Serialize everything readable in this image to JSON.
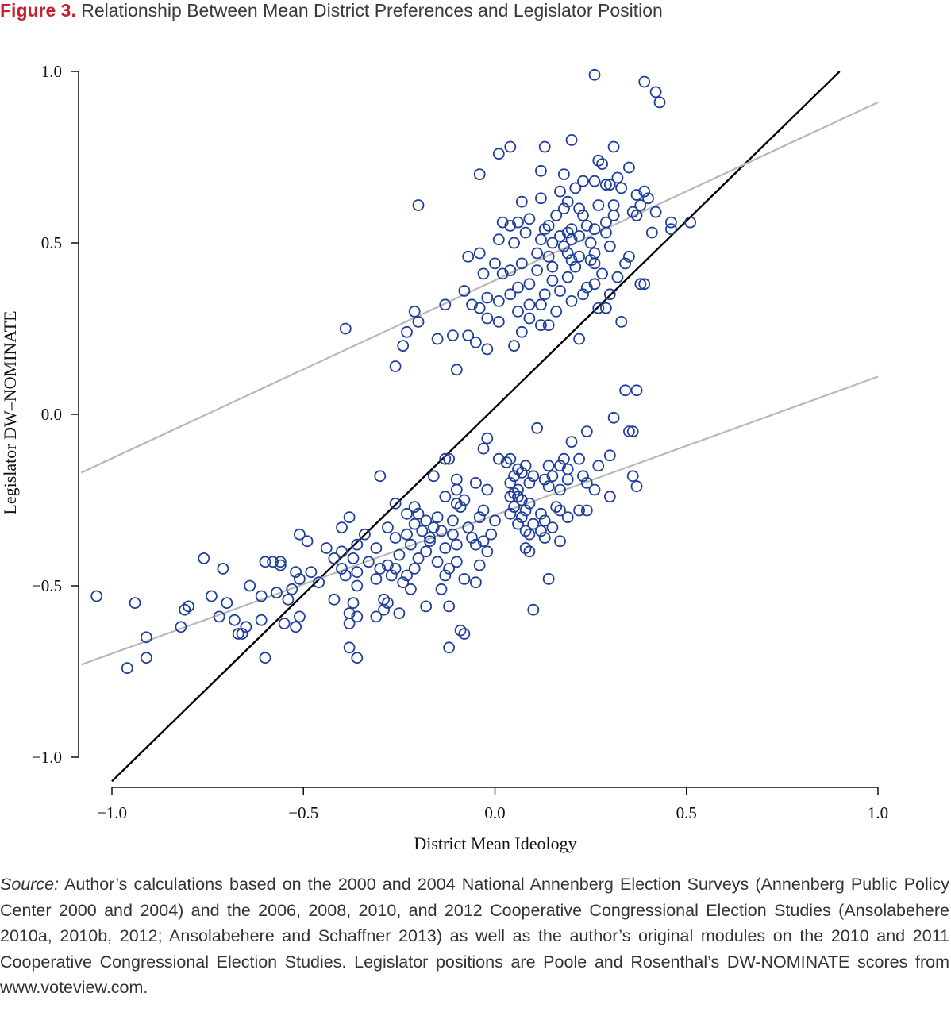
{
  "figure": {
    "label": "Figure 3.",
    "title": "Relationship Between Mean District Preferences and Legislator Position"
  },
  "source": {
    "label": "Source:",
    "text": "Author’s calculations based on the 2000 and 2004 National Annenberg Election Surveys (Annenberg Public Policy Center 2000 and 2004) and the 2006, 2008, 2010, and 2012 Cooperative Congressional Election Studies (Ansolabehere 2010a, 2010b, 2012; Ansolabehere and Schaffner 2013) as well as the author’s original modules on the 2010 and 2011 Cooperative Congressional Election Studies. Legislator positions are Poole and Rosenthal’s DW-NOMINATE scores from www.voteview.com."
  },
  "chart_data": {
    "type": "scatter",
    "title": "Relationship Between Mean District Preferences and Legislator Position",
    "xlabel": "District Mean Ideology",
    "ylabel": "Legislator DW–NOMINATE",
    "xlim": [
      -1.0,
      1.0
    ],
    "ylim": [
      -1.0,
      1.0
    ],
    "x_ticks": [
      -1.0,
      -0.5,
      0.0,
      0.5,
      1.0
    ],
    "x_tick_labels": [
      "−1.0",
      "−0.5",
      "0.0",
      "0.5",
      "1.0"
    ],
    "y_ticks": [
      -1.0,
      -0.5,
      0.0,
      0.5,
      1.0
    ],
    "y_tick_labels": [
      "−1.0",
      "−0.5",
      "0.0",
      "0.5",
      "1.0"
    ],
    "grid": false,
    "legend": "none",
    "marker_color": "#1f3f9a",
    "lines": [
      {
        "role": "45-degree line",
        "color": "#000000",
        "x": [
          -1.0,
          0.9
        ],
        "y": [
          -1.07,
          1.0
        ]
      },
      {
        "role": "upper fit",
        "color": "#b8b8b8",
        "x": [
          -1.08,
          1.0
        ],
        "y": [
          -0.17,
          0.91
        ]
      },
      {
        "role": "lower fit",
        "color": "#b8b8b8",
        "x": [
          -1.08,
          1.0
        ],
        "y": [
          -0.73,
          0.11
        ]
      }
    ],
    "points": [
      [
        0.26,
        0.99
      ],
      [
        0.39,
        0.97
      ],
      [
        0.42,
        0.94
      ],
      [
        0.43,
        0.91
      ],
      [
        0.2,
        0.8
      ],
      [
        0.13,
        0.78
      ],
      [
        0.31,
        0.78
      ],
      [
        0.04,
        0.78
      ],
      [
        0.01,
        0.76
      ],
      [
        0.28,
        0.73
      ],
      [
        0.27,
        0.74
      ],
      [
        0.35,
        0.72
      ],
      [
        0.12,
        0.71
      ],
      [
        0.18,
        0.7
      ],
      [
        -0.04,
        0.7
      ],
      [
        0.32,
        0.69
      ],
      [
        0.23,
        0.68
      ],
      [
        0.26,
        0.68
      ],
      [
        0.29,
        0.67
      ],
      [
        0.3,
        0.67
      ],
      [
        0.21,
        0.66
      ],
      [
        0.17,
        0.65
      ],
      [
        0.39,
        0.65
      ],
      [
        0.33,
        0.66
      ],
      [
        0.37,
        0.64
      ],
      [
        0.07,
        0.62
      ],
      [
        0.4,
        0.63
      ],
      [
        0.12,
        0.63
      ],
      [
        0.19,
        0.62
      ],
      [
        -0.2,
        0.61
      ],
      [
        0.27,
        0.61
      ],
      [
        0.31,
        0.61
      ],
      [
        0.22,
        0.6
      ],
      [
        0.38,
        0.61
      ],
      [
        0.18,
        0.6
      ],
      [
        0.36,
        0.59
      ],
      [
        0.42,
        0.59
      ],
      [
        0.16,
        0.58
      ],
      [
        0.23,
        0.58
      ],
      [
        0.31,
        0.58
      ],
      [
        0.37,
        0.58
      ],
      [
        0.09,
        0.57
      ],
      [
        0.02,
        0.56
      ],
      [
        0.06,
        0.56
      ],
      [
        0.29,
        0.56
      ],
      [
        0.46,
        0.56
      ],
      [
        0.51,
        0.56
      ],
      [
        0.14,
        0.55
      ],
      [
        0.04,
        0.55
      ],
      [
        0.26,
        0.54
      ],
      [
        0.2,
        0.54
      ],
      [
        0.13,
        0.54
      ],
      [
        0.24,
        0.55
      ],
      [
        0.46,
        0.54
      ],
      [
        0.08,
        0.53
      ],
      [
        0.19,
        0.53
      ],
      [
        0.29,
        0.53
      ],
      [
        0.41,
        0.53
      ],
      [
        0.17,
        0.52
      ],
      [
        0.22,
        0.52
      ],
      [
        0.01,
        0.51
      ],
      [
        0.12,
        0.51
      ],
      [
        0.2,
        0.51
      ],
      [
        0.05,
        0.5
      ],
      [
        0.15,
        0.5
      ],
      [
        0.25,
        0.5
      ],
      [
        0.18,
        0.49
      ],
      [
        0.3,
        0.49
      ],
      [
        -0.04,
        0.47
      ],
      [
        0.11,
        0.47
      ],
      [
        0.19,
        0.47
      ],
      [
        0.26,
        0.47
      ],
      [
        0.14,
        0.46
      ],
      [
        0.22,
        0.46
      ],
      [
        -0.07,
        0.46
      ],
      [
        0.35,
        0.46
      ],
      [
        0.2,
        0.45
      ],
      [
        0.25,
        0.45
      ],
      [
        0.0,
        0.44
      ],
      [
        0.07,
        0.44
      ],
      [
        0.26,
        0.44
      ],
      [
        0.34,
        0.44
      ],
      [
        0.15,
        0.43
      ],
      [
        0.21,
        0.43
      ],
      [
        0.04,
        0.42
      ],
      [
        0.11,
        0.42
      ],
      [
        0.28,
        0.41
      ],
      [
        -0.03,
        0.41
      ],
      [
        0.02,
        0.41
      ],
      [
        0.19,
        0.4
      ],
      [
        0.32,
        0.4
      ],
      [
        0.15,
        0.39
      ],
      [
        0.09,
        0.38
      ],
      [
        0.26,
        0.38
      ],
      [
        0.06,
        0.37
      ],
      [
        0.24,
        0.37
      ],
      [
        0.38,
        0.38
      ],
      [
        0.39,
        0.38
      ],
      [
        -0.08,
        0.36
      ],
      [
        0.17,
        0.36
      ],
      [
        0.13,
        0.35
      ],
      [
        -0.02,
        0.34
      ],
      [
        0.04,
        0.35
      ],
      [
        0.23,
        0.35
      ],
      [
        0.3,
        0.35
      ],
      [
        0.01,
        0.33
      ],
      [
        0.2,
        0.33
      ],
      [
        -0.06,
        0.32
      ],
      [
        -0.13,
        0.32
      ],
      [
        0.09,
        0.32
      ],
      [
        0.12,
        0.32
      ],
      [
        -0.04,
        0.31
      ],
      [
        0.27,
        0.31
      ],
      [
        0.29,
        0.31
      ],
      [
        -0.21,
        0.3
      ],
      [
        0.06,
        0.3
      ],
      [
        0.16,
        0.3
      ],
      [
        -0.02,
        0.28
      ],
      [
        0.09,
        0.28
      ],
      [
        0.33,
        0.27
      ],
      [
        -0.2,
        0.27
      ],
      [
        0.01,
        0.27
      ],
      [
        0.14,
        0.26
      ],
      [
        -0.39,
        0.25
      ],
      [
        -0.23,
        0.24
      ],
      [
        0.07,
        0.24
      ],
      [
        0.12,
        0.26
      ],
      [
        -0.07,
        0.23
      ],
      [
        -0.11,
        0.23
      ],
      [
        -0.15,
        0.22
      ],
      [
        0.22,
        0.22
      ],
      [
        -0.05,
        0.21
      ],
      [
        -0.24,
        0.2
      ],
      [
        0.05,
        0.2
      ],
      [
        -0.02,
        0.19
      ],
      [
        -0.26,
        0.14
      ],
      [
        -0.1,
        0.13
      ],
      [
        0.34,
        0.07
      ],
      [
        0.37,
        0.07
      ],
      [
        0.31,
        -0.01
      ],
      [
        0.35,
        -0.05
      ],
      [
        0.11,
        -0.04
      ],
      [
        0.24,
        -0.05
      ],
      [
        0.36,
        -0.05
      ],
      [
        -0.02,
        -0.07
      ],
      [
        0.2,
        -0.08
      ],
      [
        -0.03,
        -0.1
      ],
      [
        0.3,
        -0.12
      ],
      [
        0.04,
        -0.13
      ],
      [
        0.01,
        -0.13
      ],
      [
        0.18,
        -0.13
      ],
      [
        -0.12,
        -0.13
      ],
      [
        -0.13,
        -0.13
      ],
      [
        0.22,
        -0.13
      ],
      [
        0.03,
        -0.14
      ],
      [
        0.17,
        -0.15
      ],
      [
        0.14,
        -0.15
      ],
      [
        0.08,
        -0.15
      ],
      [
        0.27,
        -0.15
      ],
      [
        0.06,
        -0.16
      ],
      [
        0.19,
        -0.16
      ],
      [
        0.07,
        -0.17
      ],
      [
        0.1,
        -0.18
      ],
      [
        -0.3,
        -0.18
      ],
      [
        0.05,
        -0.18
      ],
      [
        0.15,
        -0.18
      ],
      [
        0.23,
        -0.18
      ],
      [
        0.36,
        -0.18
      ],
      [
        -0.16,
        -0.18
      ],
      [
        0.19,
        -0.19
      ],
      [
        0.13,
        -0.19
      ],
      [
        -0.1,
        -0.19
      ],
      [
        0.04,
        -0.2
      ],
      [
        0.09,
        -0.2
      ],
      [
        0.24,
        -0.2
      ],
      [
        -0.05,
        -0.2
      ],
      [
        0.14,
        -0.21
      ],
      [
        0.37,
        -0.21
      ],
      [
        0.06,
        -0.22
      ],
      [
        -0.02,
        -0.22
      ],
      [
        0.17,
        -0.22
      ],
      [
        -0.1,
        -0.22
      ],
      [
        0.26,
        -0.22
      ],
      [
        0.05,
        -0.23
      ],
      [
        -0.13,
        -0.24
      ],
      [
        0.3,
        -0.24
      ],
      [
        0.06,
        -0.24
      ],
      [
        0.04,
        -0.24
      ],
      [
        -0.08,
        -0.25
      ],
      [
        0.07,
        -0.25
      ],
      [
        -0.1,
        -0.26
      ],
      [
        -0.26,
        -0.26
      ],
      [
        0.09,
        -0.26
      ],
      [
        0.16,
        -0.27
      ],
      [
        -0.09,
        -0.27
      ],
      [
        0.05,
        -0.27
      ],
      [
        -0.21,
        -0.27
      ],
      [
        -0.03,
        -0.28
      ],
      [
        0.08,
        -0.28
      ],
      [
        0.17,
        -0.28
      ],
      [
        0.22,
        -0.28
      ],
      [
        0.24,
        -0.28
      ],
      [
        -0.2,
        -0.29
      ],
      [
        0.04,
        -0.29
      ],
      [
        0.12,
        -0.29
      ],
      [
        -0.23,
        -0.29
      ],
      [
        -0.15,
        -0.3
      ],
      [
        0.07,
        -0.3
      ],
      [
        0.19,
        -0.3
      ],
      [
        -0.04,
        -0.3
      ],
      [
        -0.38,
        -0.3
      ],
      [
        -0.18,
        -0.31
      ],
      [
        0.13,
        -0.31
      ],
      [
        -0.11,
        -0.31
      ],
      [
        0.0,
        -0.31
      ],
      [
        0.1,
        -0.32
      ],
      [
        -0.21,
        -0.32
      ],
      [
        0.06,
        -0.32
      ],
      [
        -0.16,
        -0.33
      ],
      [
        -0.28,
        -0.33
      ],
      [
        0.15,
        -0.33
      ],
      [
        -0.4,
        -0.33
      ],
      [
        -0.07,
        -0.33
      ],
      [
        -0.19,
        -0.34
      ],
      [
        0.08,
        -0.34
      ],
      [
        -0.14,
        -0.34
      ],
      [
        0.12,
        -0.34
      ],
      [
        -0.34,
        -0.35
      ],
      [
        -0.23,
        -0.35
      ],
      [
        -0.11,
        -0.35
      ],
      [
        0.09,
        -0.35
      ],
      [
        -0.51,
        -0.35
      ],
      [
        -0.01,
        -0.35
      ],
      [
        -0.17,
        -0.36
      ],
      [
        -0.06,
        -0.36
      ],
      [
        0.13,
        -0.36
      ],
      [
        -0.26,
        -0.36
      ],
      [
        -0.03,
        -0.37
      ],
      [
        -0.49,
        -0.37
      ],
      [
        -0.17,
        -0.37
      ],
      [
        0.17,
        -0.37
      ],
      [
        -0.36,
        -0.38
      ],
      [
        -0.1,
        -0.38
      ],
      [
        -0.22,
        -0.38
      ],
      [
        -0.05,
        -0.38
      ],
      [
        0.08,
        -0.39
      ],
      [
        -0.44,
        -0.39
      ],
      [
        -0.31,
        -0.39
      ],
      [
        -0.13,
        -0.39
      ],
      [
        -0.18,
        -0.4
      ],
      [
        -0.4,
        -0.4
      ],
      [
        0.09,
        -0.4
      ],
      [
        -0.02,
        -0.4
      ],
      [
        -0.25,
        -0.41
      ],
      [
        -0.42,
        -0.42
      ],
      [
        -0.37,
        -0.42
      ],
      [
        -0.2,
        -0.42
      ],
      [
        -0.76,
        -0.42
      ],
      [
        -0.1,
        -0.43
      ],
      [
        -0.56,
        -0.43
      ],
      [
        -0.33,
        -0.43
      ],
      [
        -0.15,
        -0.43
      ],
      [
        -0.56,
        -0.44
      ],
      [
        -0.6,
        -0.43
      ],
      [
        -0.28,
        -0.44
      ],
      [
        -0.04,
        -0.44
      ],
      [
        -0.58,
        -0.43
      ],
      [
        -0.4,
        -0.45
      ],
      [
        -0.26,
        -0.45
      ],
      [
        -0.12,
        -0.45
      ],
      [
        -0.71,
        -0.45
      ],
      [
        -0.3,
        -0.45
      ],
      [
        -0.21,
        -0.45
      ],
      [
        -0.52,
        -0.46
      ],
      [
        -0.48,
        -0.46
      ],
      [
        -0.36,
        -0.46
      ],
      [
        -0.39,
        -0.47
      ],
      [
        -0.27,
        -0.47
      ],
      [
        -0.13,
        -0.47
      ],
      [
        -0.23,
        -0.47
      ],
      [
        -0.51,
        -0.48
      ],
      [
        0.14,
        -0.48
      ],
      [
        -0.08,
        -0.48
      ],
      [
        -0.31,
        -0.48
      ],
      [
        -0.24,
        -0.49
      ],
      [
        -0.05,
        -0.49
      ],
      [
        -0.46,
        -0.49
      ],
      [
        -0.64,
        -0.5
      ],
      [
        -0.36,
        -0.5
      ],
      [
        -0.22,
        -0.51
      ],
      [
        -0.53,
        -0.51
      ],
      [
        -0.14,
        -0.51
      ],
      [
        -0.57,
        -0.52
      ],
      [
        -1.04,
        -0.53
      ],
      [
        -0.74,
        -0.53
      ],
      [
        -0.61,
        -0.53
      ],
      [
        -0.54,
        -0.54
      ],
      [
        -0.42,
        -0.54
      ],
      [
        -0.29,
        -0.54
      ],
      [
        -0.94,
        -0.55
      ],
      [
        -0.7,
        -0.55
      ],
      [
        -0.28,
        -0.55
      ],
      [
        -0.37,
        -0.55
      ],
      [
        -0.12,
        -0.56
      ],
      [
        -0.18,
        -0.56
      ],
      [
        -0.8,
        -0.56
      ],
      [
        -0.81,
        -0.57
      ],
      [
        -0.29,
        -0.57
      ],
      [
        -0.38,
        -0.58
      ],
      [
        -0.25,
        -0.58
      ],
      [
        -0.72,
        -0.59
      ],
      [
        -0.31,
        -0.59
      ],
      [
        -0.51,
        -0.59
      ],
      [
        0.1,
        -0.57
      ],
      [
        -0.36,
        -0.59
      ],
      [
        -0.68,
        -0.6
      ],
      [
        -0.61,
        -0.6
      ],
      [
        -0.38,
        -0.61
      ],
      [
        -0.55,
        -0.61
      ],
      [
        -0.82,
        -0.62
      ],
      [
        -0.52,
        -0.62
      ],
      [
        -0.65,
        -0.62
      ],
      [
        -0.09,
        -0.63
      ],
      [
        -0.08,
        -0.64
      ],
      [
        -0.67,
        -0.64
      ],
      [
        -0.91,
        -0.65
      ],
      [
        -0.66,
        -0.64
      ],
      [
        -0.38,
        -0.68
      ],
      [
        -0.12,
        -0.68
      ],
      [
        -0.6,
        -0.71
      ],
      [
        -0.91,
        -0.71
      ],
      [
        -0.36,
        -0.71
      ],
      [
        -0.96,
        -0.74
      ]
    ]
  }
}
